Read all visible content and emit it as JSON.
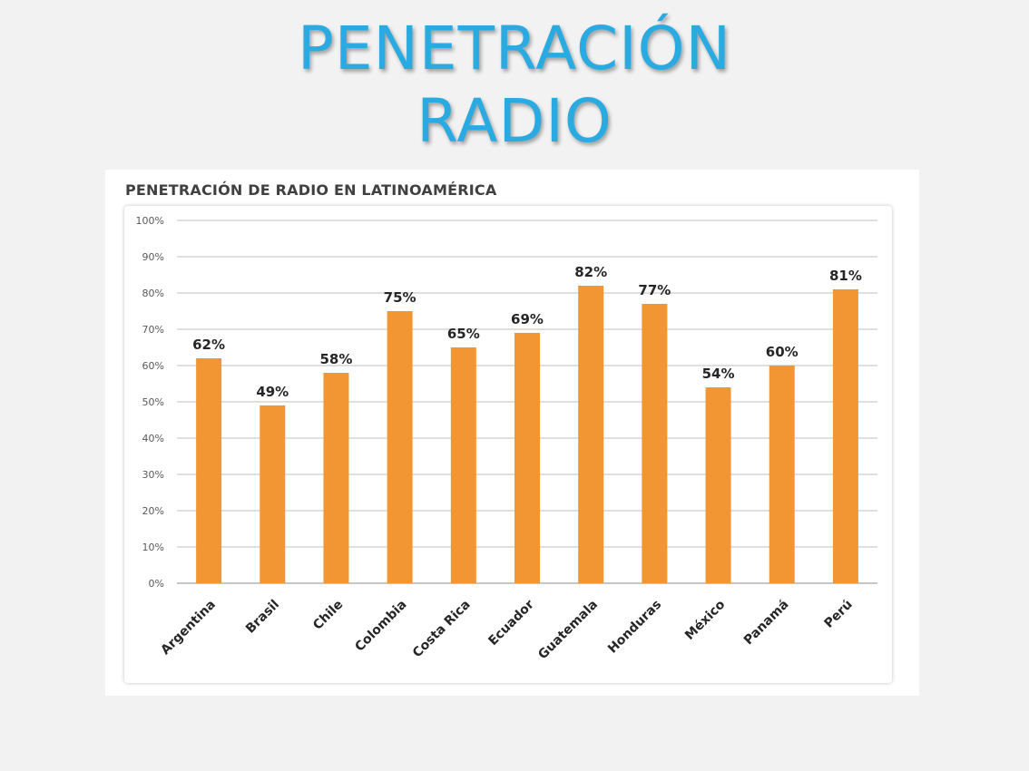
{
  "slide": {
    "title_line1": "PENETRACIÓN",
    "title_line2": "RADIO"
  },
  "colors": {
    "title": "#29abe2",
    "bar": "#f29634",
    "gridline": "#bfbfbf",
    "background": "#f2f2f2"
  },
  "chart_data": {
    "type": "bar",
    "title": "PENETRACIÓN DE RADIO EN LATINOAMÉRICA",
    "xlabel": "",
    "ylabel": "",
    "categories": [
      "Argentina",
      "Brasil",
      "Chile",
      "Colombia",
      "Costa Rica",
      "Ecuador",
      "Guatemala",
      "Honduras",
      "México",
      "Panamá",
      "Perú"
    ],
    "values": [
      62,
      49,
      58,
      75,
      65,
      69,
      82,
      77,
      54,
      60,
      81
    ],
    "data_labels": [
      "62%",
      "49%",
      "58%",
      "75%",
      "65%",
      "69%",
      "82%",
      "77%",
      "54%",
      "60%",
      "81%"
    ],
    "ylim": [
      0,
      100
    ],
    "y_ticks": [
      0,
      10,
      20,
      30,
      40,
      50,
      60,
      70,
      80,
      90,
      100
    ],
    "y_tick_labels": [
      "0%",
      "10%",
      "20%",
      "30%",
      "40%",
      "50%",
      "60%",
      "70%",
      "80%",
      "90%",
      "100%"
    ],
    "grid": true,
    "legend": "none"
  }
}
